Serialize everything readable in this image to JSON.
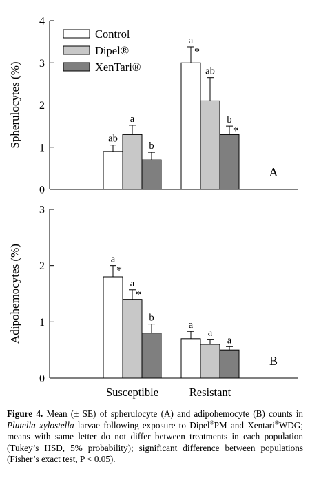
{
  "chart_data": [
    {
      "type": "bar",
      "panel_label": "A",
      "ylabel": "Spherulocytes (%)",
      "ylim": [
        0,
        4
      ],
      "yticks": [
        "0",
        "1",
        "2",
        "3",
        "4"
      ],
      "categories": [
        "Susceptible",
        "Resistant"
      ],
      "legend": {
        "placement": "top-left"
      },
      "series": [
        {
          "name": "Control",
          "color": "#ffffff",
          "values": [
            0.9,
            3.0
          ],
          "se": [
            0.15,
            0.38
          ],
          "letters": [
            "ab",
            "a"
          ],
          "stars": [
            false,
            true
          ]
        },
        {
          "name": "Dipel®",
          "color": "#c8c8c8",
          "values": [
            1.3,
            2.1
          ],
          "se": [
            0.22,
            0.55
          ],
          "letters": [
            "a",
            "ab"
          ],
          "stars": [
            false,
            false
          ]
        },
        {
          "name": "XenTari®",
          "color": "#7f7f7f",
          "values": [
            0.7,
            1.3
          ],
          "se": [
            0.18,
            0.2
          ],
          "letters": [
            "b",
            "b"
          ],
          "stars": [
            false,
            true
          ]
        }
      ]
    },
    {
      "type": "bar",
      "panel_label": "B",
      "ylabel": "Adipohemocytes (%)",
      "ylim": [
        0,
        3
      ],
      "yticks": [
        "0",
        "1",
        "2",
        "3"
      ],
      "categories": [
        "Susceptible",
        "Resistant"
      ],
      "series": [
        {
          "name": "Control",
          "color": "#ffffff",
          "values": [
            1.8,
            0.7
          ],
          "se": [
            0.2,
            0.13
          ],
          "letters": [
            "a",
            "a"
          ],
          "stars": [
            true,
            false
          ]
        },
        {
          "name": "Dipel®",
          "color": "#c8c8c8",
          "values": [
            1.4,
            0.6
          ],
          "se": [
            0.17,
            0.09
          ],
          "letters": [
            "a",
            "a"
          ],
          "stars": [
            true,
            false
          ]
        },
        {
          "name": "XenTari®",
          "color": "#7f7f7f",
          "values": [
            0.8,
            0.5
          ],
          "se": [
            0.16,
            0.06
          ],
          "letters": [
            "b",
            "a"
          ],
          "stars": [
            false,
            false
          ]
        }
      ]
    }
  ],
  "caption": {
    "label": "Figure 4.",
    "text_1": " Mean (± SE) of spherulocyte (A) and adipohemocyte (B) counts in ",
    "species": "Plutella xylostella",
    "text_2": " larvae following exposure to Dipel",
    "reg_1": "®",
    "text_3": "PM and Xentari",
    "reg_2": "®",
    "text_4": "WDG; means with same letter do not differ between treatments in each population (Tukey’s HSD, 5% probability); significant difference between populations (Fisher’s exact test, P < 0.05)."
  }
}
